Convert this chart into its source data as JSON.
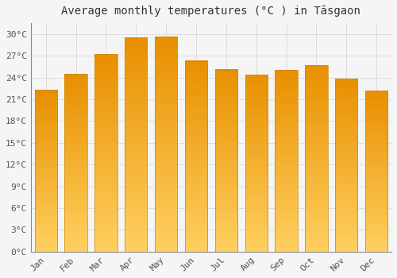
{
  "title": "Average monthly temperatures (°C ) in Tāsgaon",
  "months": [
    "Jan",
    "Feb",
    "Mar",
    "Apr",
    "May",
    "Jun",
    "Jul",
    "Aug",
    "Sep",
    "Oct",
    "Nov",
    "Dec"
  ],
  "values": [
    22.3,
    24.5,
    27.2,
    29.5,
    29.6,
    26.3,
    25.1,
    24.4,
    25.0,
    25.7,
    23.8,
    22.2
  ],
  "bar_color_top": "#F5A800",
  "bar_color_bottom": "#FFD060",
  "bar_edge_color": "#CC8800",
  "yticks": [
    0,
    3,
    6,
    9,
    12,
    15,
    18,
    21,
    24,
    27,
    30
  ],
  "ytick_labels": [
    "0°C",
    "3°C",
    "6°C",
    "9°C",
    "12°C",
    "15°C",
    "18°C",
    "21°C",
    "24°C",
    "27°C",
    "30°C"
  ],
  "ylim": [
    0,
    31.5
  ],
  "background_color": "#f5f5f5",
  "plot_bg_color": "#f5f5f5",
  "grid_color": "#dddddd",
  "title_fontsize": 10,
  "tick_fontsize": 8,
  "font_family": "monospace"
}
